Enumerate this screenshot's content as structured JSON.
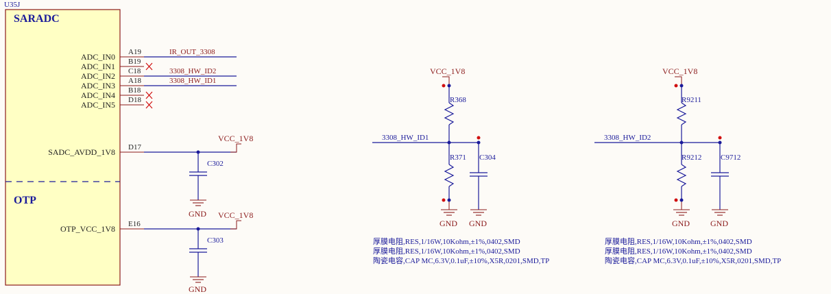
{
  "part": {
    "ref": "U35J",
    "sections": {
      "saradc": "SARADC",
      "otp": "OTP"
    },
    "pins": [
      {
        "name": "ADC_IN0",
        "num": "A19",
        "net": "IR_OUT_3308"
      },
      {
        "name": "ADC_IN1",
        "num": "B19",
        "net": ""
      },
      {
        "name": "ADC_IN2",
        "num": "C18",
        "net": "3308_HW_ID2"
      },
      {
        "name": "ADC_IN3",
        "num": "A18",
        "net": "3308_HW_ID1"
      },
      {
        "name": "ADC_IN4",
        "num": "B18",
        "net": ""
      },
      {
        "name": "ADC_IN5",
        "num": "D18",
        "net": ""
      }
    ],
    "avdd": {
      "name": "SADC_AVDD_1V8",
      "num": "D17"
    },
    "otp_vcc": {
      "name": "OTP_VCC_1V8",
      "num": "E16"
    }
  },
  "left": {
    "vcc1": "VCC_1V8",
    "c1": "C302",
    "gnd1": "GND",
    "vcc2": "VCC_1V8",
    "c2": "C303",
    "gnd2": "GND"
  },
  "mid": {
    "vcc": "VCC_1V8",
    "r_top": "R368",
    "net": "3308_HW_ID1",
    "r_bot": "R371",
    "cap": "C304",
    "gnd1": "GND",
    "gnd2": "GND",
    "desc": [
      "厚膜电阻,RES,1/16W,10Kohm,±1%,0402,SMD",
      "厚膜电阻,RES,1/16W,10Kohm,±1%,0402,SMD",
      "陶瓷电容,CAP MC,6.3V,0.1uF,±10%,X5R,0201,SMD,TP"
    ]
  },
  "right": {
    "vcc": "VCC_1V8",
    "r_top": "R9211",
    "net": "3308_HW_ID2",
    "r_bot": "R9212",
    "cap": "C9712",
    "gnd1": "GND",
    "gnd2": "GND",
    "desc": [
      "厚膜电阻,RES,1/16W,10Kohm,±1%,0402,SMD",
      "厚膜电阻,RES,1/16W,10Kohm,±1%,0402,SMD",
      "陶瓷电容,CAP MC,6.3V,0.1uF,±10%,X5R,0201,SMD,TP"
    ]
  },
  "colors": {
    "wire": "#1a1a9a",
    "component": "#1a1a9a",
    "part_body": "#ffffc4",
    "part_border": "#8b1a1a",
    "pin": "#8b1a1a",
    "junction": "#1a1a9a",
    "endpoint": "#d01010"
  }
}
